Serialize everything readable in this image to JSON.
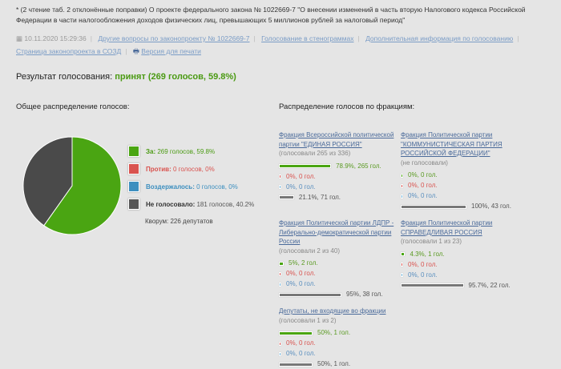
{
  "title": "* (2 чтение таб. 2 отклонённые поправки) О проекте федерального закона № 1022669-7 \"О внесении изменений в часть вторую Налогового кодекса Российской Федерации в части налогообложения доходов физических лиц, превышающих 5 миллионов рублей за налоговый период\"",
  "meta": {
    "date": "10.11.2020 15:29:36",
    "links": [
      "Другие вопросы по законопроекту № 1022669-7",
      "Голосование в стенограммах",
      "Дополнительная информация по голосованию",
      "Страница законопроекта в СОЗД"
    ],
    "print": "Версия для печати"
  },
  "result": {
    "label": "Результат голосования:",
    "value": "принят (269 голосов, 59.8%)"
  },
  "overall": {
    "heading": "Общее распределение голосов:",
    "items": [
      {
        "label": "За:",
        "text": "269 голосов, 59.8%",
        "color": "#4aa512",
        "pct": 59.8
      },
      {
        "label": "Против:",
        "text": "0 голосов, 0%",
        "color": "#d9534f",
        "pct": 0
      },
      {
        "label": "Воздержалось:",
        "text": "0 голосов, 0%",
        "color": "#3d8fbf",
        "pct": 0
      },
      {
        "label": "Не голосовало:",
        "text": "181 голосов, 40.2%",
        "color": "#555555",
        "pct": 40.2
      }
    ],
    "quorum": "Кворум: 226 депутатов"
  },
  "factions_heading": "Распределение голосов по фракциям:",
  "factions": [
    {
      "name": "Фракция Всероссийской политической партии \"ЕДИНАЯ РОССИЯ\"",
      "sub": "(голосовали 265 из 336)",
      "rows": [
        [
          78.9,
          "78.9%, 265 гол."
        ],
        [
          0,
          "0%, 0 гол."
        ],
        [
          0,
          "0%, 0 гол."
        ],
        [
          21.1,
          "21.1%, 71 гол."
        ]
      ]
    },
    {
      "name": "Фракция Политической партии \"КОММУНИСТИЧЕСКАЯ ПАРТИЯ РОССИЙСКОЙ ФЕДЕРАЦИИ\"",
      "sub": "(не голосовали)",
      "rows": [
        [
          0,
          "0%, 0 гол."
        ],
        [
          0,
          "0%, 0 гол."
        ],
        [
          0,
          "0%, 0 гол."
        ],
        [
          100,
          "100%, 43 гол."
        ]
      ]
    },
    {
      "name": "Фракция Политической партии ЛДПР - Либерально-демократической партии России",
      "sub": "(голосовали 2 из 40)",
      "rows": [
        [
          5,
          "5%, 2 гол."
        ],
        [
          0,
          "0%, 0 гол."
        ],
        [
          0,
          "0%, 0 гол."
        ],
        [
          95,
          "95%, 38 гол."
        ]
      ]
    },
    {
      "name": "Фракция Политической партии СПРАВЕДЛИВАЯ РОССИЯ",
      "sub": "(голосовали 1 из 23)",
      "rows": [
        [
          4.3,
          "4.3%, 1 гол."
        ],
        [
          0,
          "0%, 0 гол."
        ],
        [
          0,
          "0%, 0 гол."
        ],
        [
          95.7,
          "95.7%, 22 гол."
        ]
      ]
    },
    {
      "name": "Депутаты, не входящие во фракции",
      "sub": "(голосовали 1 из 2)",
      "rows": [
        [
          50,
          "50%, 1 гол."
        ],
        [
          0,
          "0%, 0 гол."
        ],
        [
          0,
          "0%, 0 гол."
        ],
        [
          50,
          "50%, 1 гол."
        ]
      ]
    }
  ]
}
